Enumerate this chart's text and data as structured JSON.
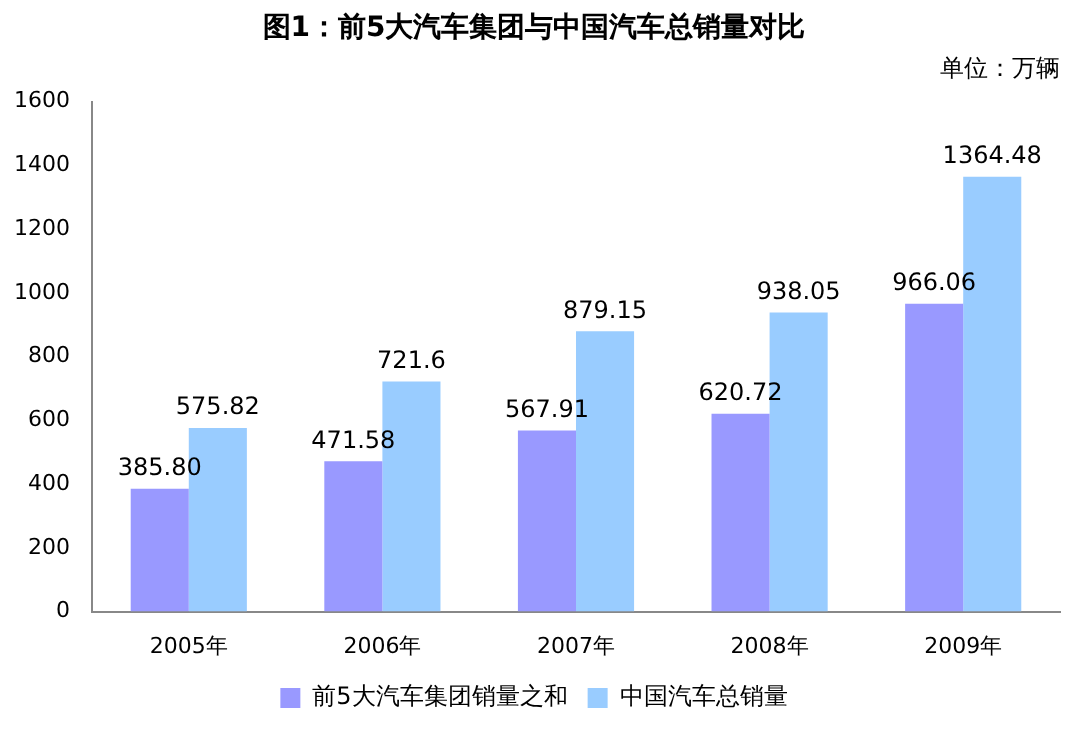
{
  "chart_data": {
    "type": "bar",
    "title": "图1：前5大汽车集团与中国汽车总销量对比",
    "annotations": [
      "单位：万辆"
    ],
    "categories": [
      "2005年",
      "2006年",
      "2007年",
      "2008年",
      "2009年"
    ],
    "series": [
      {
        "name": "前5大汽车集团销量之和",
        "color": "#9999ff",
        "values": [
          385.8,
          471.58,
          567.91,
          620.72,
          966.06
        ],
        "value_labels": [
          "385.80",
          "471.58",
          "567.91",
          "620.72",
          "966.06"
        ]
      },
      {
        "name": "中国汽车总销量",
        "color": "#99ccff",
        "values": [
          575.82,
          721.6,
          879.15,
          938.05,
          1364.48
        ],
        "value_labels": [
          "575.82",
          "721.6",
          "879.15",
          "938.05",
          "1364.48"
        ]
      }
    ],
    "ylim": [
      0,
      1600
    ],
    "yticks": [
      0,
      200,
      400,
      600,
      800,
      1000,
      1200,
      1400,
      1600
    ],
    "grid": false,
    "legend": "bottom"
  }
}
